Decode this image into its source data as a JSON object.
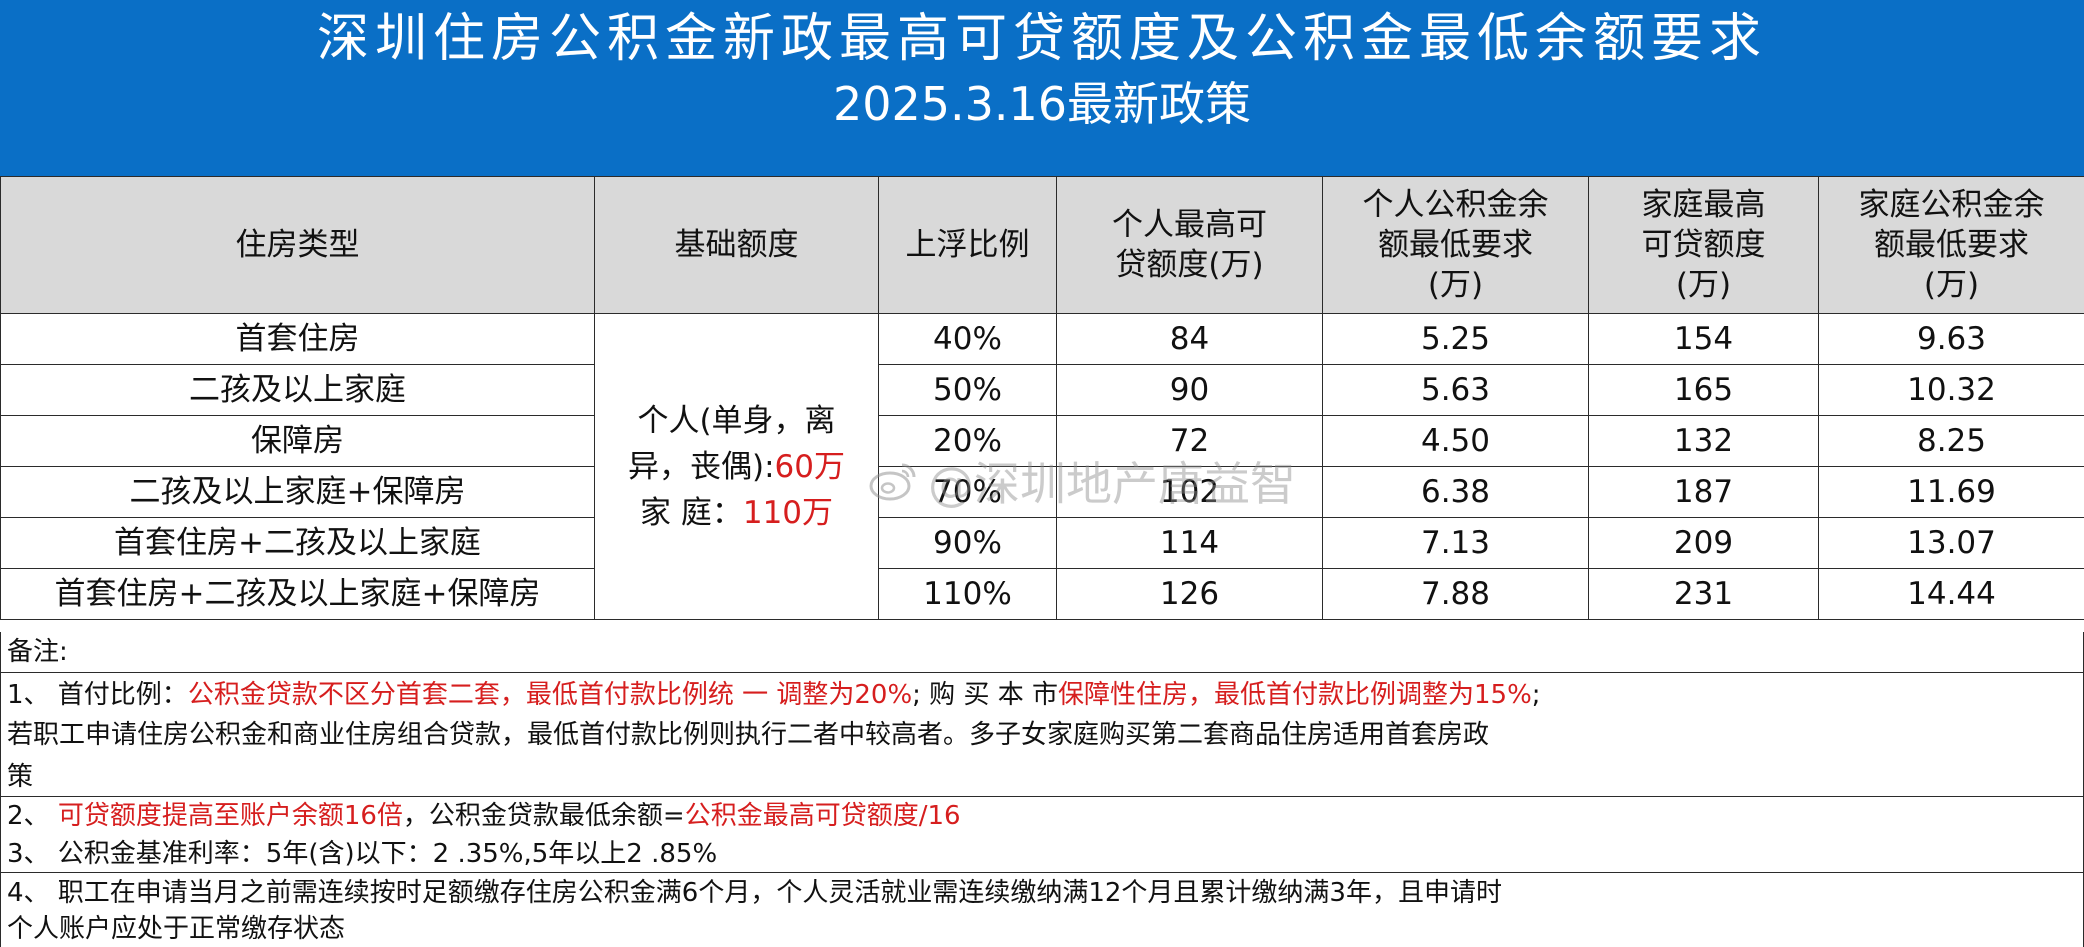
{
  "header": {
    "title_line1": "深圳住房公积金新政最高可贷额度及公积金最低余额要求",
    "title_line2": "2025.3.16最新政策"
  },
  "table": {
    "columns": [
      "住房类型",
      "基础额度",
      "上浮比例",
      "个人最高可贷额度(万)",
      "个人公积金余额最低要求(万)",
      "家庭最高可贷额度(万)",
      "家庭公积金余额最低要求(万)"
    ],
    "base": {
      "individual_label": "个人(单身，离异，丧偶):",
      "individual_value": "60万",
      "family_label": "家 庭：",
      "family_value": "110万"
    },
    "rows": [
      {
        "type": "首套住房",
        "ratio": "40%",
        "p_max": "84",
        "p_min": "5.25",
        "f_max": "154",
        "f_min": "9.63"
      },
      {
        "type": "二孩及以上家庭",
        "ratio": "50%",
        "p_max": "90",
        "p_min": "5.63",
        "f_max": "165",
        "f_min": "10.32"
      },
      {
        "type": "保障房",
        "ratio": "20%",
        "p_max": "72",
        "p_min": "4.50",
        "f_max": "132",
        "f_min": "8.25"
      },
      {
        "type": "二孩及以上家庭+保障房",
        "ratio": "70%",
        "p_max": "102",
        "p_min": "6.38",
        "f_max": "187",
        "f_min": "11.69"
      },
      {
        "type": "首套住房+二孩及以上家庭",
        "ratio": "90%",
        "p_max": "114",
        "p_min": "7.13",
        "f_max": "209",
        "f_min": "13.07"
      },
      {
        "type": "首套住房+二孩及以上家庭+保障房",
        "ratio": "110%",
        "p_max": "126",
        "p_min": "7.88",
        "f_max": "231",
        "f_min": "14.44"
      }
    ]
  },
  "notes": {
    "label": "备注:",
    "n1_prefix": "1、 首付比例：",
    "n1_red1": "公积金贷款不区分首套二套，",
    "n1_red2": "最低首付款比例统 一 调整为20%",
    "n1_mid": "; 购 买 本 市",
    "n1_red3": "保障性住房，最低首付款比例调整为15%",
    "n1_end": ";",
    "n1_line2": "若职工申请住房公积金和商业住房组合贷款，最低首付款比例则执行二者中较高者。多子女家庭购买第二套商品住房适用首套房政",
    "n1_line3": "策",
    "n2_prefix": "2、 ",
    "n2_red1": "可贷额度提高至账户余额16倍",
    "n2_mid": "，公积金贷款最低余额=",
    "n2_red2": "公积金最高可贷额度/16",
    "n3": "3、 公积金基准利率：5年(含)以下：2 .35%,5年以上2 .85%",
    "n4_line1": "4、 职工在申请当月之前需连续按时足额缴存住房公积金满6个月，个人灵活就业需连续缴纳满12个月且累计缴纳满3年，且申请时",
    "n4_line2": "个人账户应处于正常缴存状态"
  },
  "watermark": {
    "text": "@深圳地产唐益智",
    "icon": "weibo-icon"
  }
}
